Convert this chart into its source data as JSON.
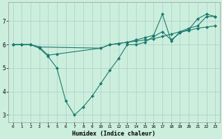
{
  "title": "",
  "xlabel": "Humidex (Indice chaleur)",
  "ylabel": "",
  "background_color": "#cceedd",
  "grid_color": "#aacccc",
  "line_color": "#1a7a6e",
  "xlim": [
    -0.5,
    23.5
  ],
  "ylim": [
    2.7,
    7.8
  ],
  "xticks": [
    0,
    1,
    2,
    3,
    4,
    5,
    6,
    7,
    8,
    9,
    10,
    11,
    12,
    13,
    14,
    15,
    16,
    17,
    18,
    19,
    20,
    21,
    22,
    23
  ],
  "yticks": [
    3,
    4,
    5,
    6,
    7
  ],
  "line1_x": [
    0,
    1,
    2,
    3,
    4,
    5,
    6,
    7,
    8,
    9,
    10,
    11,
    12,
    13,
    14,
    15,
    16,
    17,
    18,
    19,
    20,
    21,
    22,
    23
  ],
  "line1_y": [
    6.0,
    6.0,
    6.0,
    5.85,
    5.5,
    5.0,
    3.6,
    3.0,
    3.35,
    3.8,
    4.35,
    4.9,
    5.4,
    6.0,
    6.0,
    6.1,
    6.35,
    6.55,
    6.2,
    6.5,
    6.65,
    7.1,
    7.3,
    7.2
  ],
  "line2_x": [
    0,
    1,
    2,
    3,
    10,
    11,
    12,
    13,
    14,
    15,
    16,
    17,
    18,
    19,
    20,
    21,
    22,
    23
  ],
  "line2_y": [
    6.0,
    6.0,
    6.0,
    5.9,
    5.85,
    6.0,
    6.05,
    6.1,
    6.15,
    6.2,
    6.25,
    6.35,
    6.45,
    6.55,
    6.6,
    6.7,
    6.75,
    6.8
  ],
  "line3_x": [
    0,
    1,
    2,
    3,
    4,
    5,
    10,
    11,
    12,
    13,
    14,
    15,
    16,
    17,
    18,
    19,
    20,
    21,
    22,
    23
  ],
  "line3_y": [
    6.0,
    6.0,
    6.0,
    5.9,
    5.55,
    5.6,
    5.85,
    6.0,
    6.05,
    6.1,
    6.2,
    6.3,
    6.4,
    7.3,
    6.15,
    6.55,
    6.7,
    6.8,
    7.2,
    7.2
  ]
}
